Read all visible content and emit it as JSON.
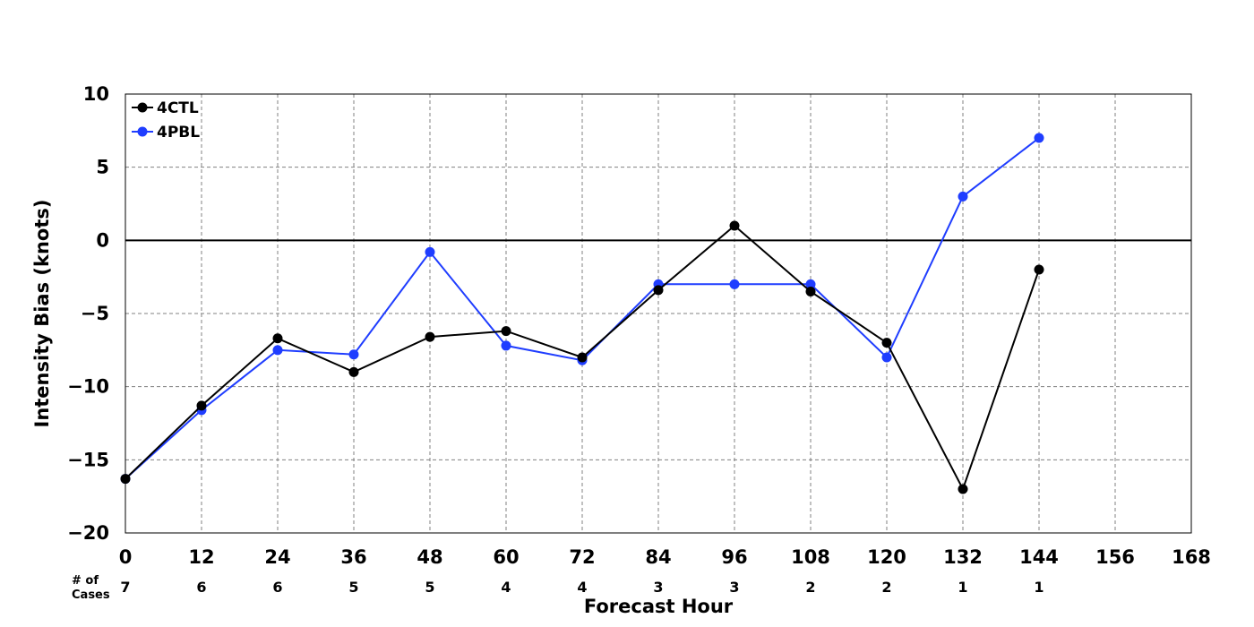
{
  "chart_data": {
    "type": "line",
    "xlabel": "Forecast Hour",
    "ylabel": "Intensity Bias (knots)",
    "xlim": [
      0,
      168
    ],
    "ylim": [
      -20,
      10
    ],
    "x_ticks": [
      "0",
      "12",
      "24",
      "36",
      "48",
      "60",
      "72",
      "84",
      "96",
      "108",
      "120",
      "132",
      "144",
      "156",
      "168"
    ],
    "y_ticks": [
      "10",
      "5",
      "0",
      "−5",
      "−10",
      "−15",
      "−20"
    ],
    "x": [
      0,
      12,
      24,
      36,
      48,
      60,
      72,
      84,
      96,
      108,
      120,
      132,
      144
    ],
    "series": [
      {
        "name": "4CTL",
        "color": "#000000",
        "values": [
          -16.3,
          -11.3,
          -6.7,
          -9.0,
          -6.6,
          -6.2,
          -8.0,
          -3.4,
          1.0,
          -3.5,
          -7.0,
          -17.0,
          -2.0
        ]
      },
      {
        "name": "4PBL",
        "color": "#1f3dff",
        "values": [
          -16.3,
          -11.6,
          -7.5,
          -7.8,
          -0.8,
          -7.2,
          -8.2,
          -3.0,
          -3.0,
          -3.0,
          -8.0,
          3.0,
          7.0
        ]
      }
    ],
    "cases_label_line1": "# of",
    "cases_label_line2": "Cases",
    "cases": [
      "7",
      "6",
      "6",
      "5",
      "5",
      "4",
      "4",
      "3",
      "3",
      "2",
      "2",
      "1",
      "1"
    ],
    "zero_line": true,
    "grid": true,
    "legend_position": "top-left"
  }
}
